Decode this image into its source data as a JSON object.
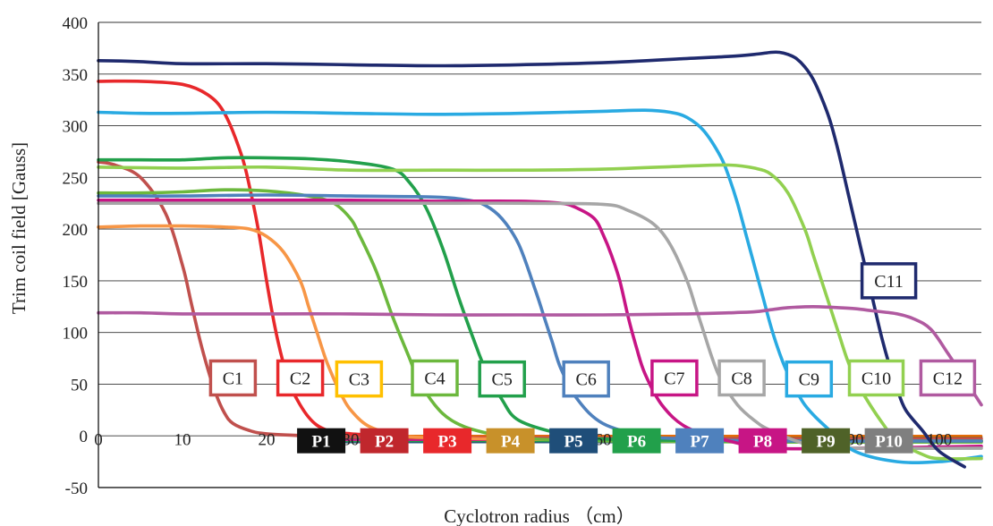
{
  "chart_data": {
    "type": "line",
    "xlabel": "Cyclotron radius （cm）",
    "ylabel": "Trim coil field  [Gauss]",
    "xlim": [
      0,
      105
    ],
    "ylim": [
      -50,
      400
    ],
    "x_ticks": [
      "0",
      "10",
      "20",
      "30",
      "40",
      "50",
      "60",
      "70",
      "80",
      "90",
      "100"
    ],
    "y_ticks": [
      "-50",
      "0",
      "50",
      "100",
      "150",
      "200",
      "250",
      "300",
      "350",
      "400"
    ],
    "grid": "horizontal",
    "series": [
      {
        "name": "C1",
        "color": "#c0504d",
        "x": [
          0,
          2,
          5,
          8,
          10,
          11,
          12,
          13,
          14,
          15,
          16,
          18,
          20,
          25,
          30,
          40,
          60,
          80,
          105
        ],
        "y": [
          265,
          262,
          250,
          215,
          165,
          130,
          95,
          65,
          40,
          22,
          12,
          5,
          2,
          0,
          -1,
          -2,
          -2,
          -3,
          -3
        ]
      },
      {
        "name": "C2",
        "color": "#e8282b",
        "x": [
          0,
          5,
          10,
          13,
          15,
          17,
          18,
          19,
          20,
          21,
          22,
          23,
          25,
          27,
          30,
          35,
          40,
          60,
          80,
          105
        ],
        "y": [
          343,
          343,
          340,
          330,
          312,
          272,
          240,
          200,
          150,
          105,
          70,
          45,
          18,
          6,
          2,
          0,
          -2,
          -4,
          -5,
          -5
        ]
      },
      {
        "name": "C3",
        "color": "#f79646",
        "x": [
          0,
          5,
          10,
          15,
          18,
          20,
          22,
          24,
          25,
          26,
          27,
          28,
          29,
          30,
          32,
          35,
          40,
          60,
          80,
          105
        ],
        "y": [
          202,
          203,
          203,
          202,
          200,
          193,
          178,
          150,
          125,
          100,
          75,
          55,
          38,
          25,
          10,
          2,
          -2,
          -4,
          -5,
          -5
        ]
      },
      {
        "name": "C4",
        "color": "#6cb83d",
        "x": [
          0,
          5,
          10,
          15,
          20,
          25,
          28,
          30,
          31,
          33,
          35,
          37,
          38,
          40,
          42,
          45,
          50,
          60,
          80,
          105
        ],
        "y": [
          235,
          235,
          236,
          238,
          237,
          232,
          225,
          210,
          195,
          160,
          115,
          75,
          55,
          30,
          15,
          5,
          -2,
          -5,
          -6,
          -6
        ]
      },
      {
        "name": "C5",
        "color": "#22a04b",
        "x": [
          0,
          5,
          10,
          15,
          20,
          25,
          30,
          35,
          37,
          39,
          41,
          43,
          45,
          46,
          48,
          50,
          55,
          60,
          80,
          105
        ],
        "y": [
          267,
          267,
          267,
          269,
          269,
          268,
          265,
          258,
          245,
          220,
          180,
          130,
          85,
          65,
          35,
          15,
          2,
          -3,
          -5,
          -5
        ]
      },
      {
        "name": "C6",
        "color": "#4f81bd",
        "x": [
          0,
          5,
          10,
          20,
          30,
          40,
          44,
          46,
          48,
          50,
          52,
          53,
          54,
          55,
          57,
          60,
          65,
          70,
          80,
          105
        ],
        "y": [
          232,
          232,
          232,
          233,
          232,
          231,
          228,
          223,
          210,
          185,
          140,
          115,
          90,
          65,
          35,
          12,
          0,
          -3,
          -5,
          -5
        ]
      },
      {
        "name": "C7",
        "color": "#c71585",
        "x": [
          0,
          10,
          20,
          30,
          40,
          50,
          55,
          57,
          59,
          60,
          61,
          62,
          63,
          64,
          65,
          67,
          70,
          75,
          80,
          90,
          105
        ],
        "y": [
          228,
          228,
          228,
          228,
          227,
          227,
          225,
          220,
          210,
          195,
          175,
          150,
          115,
          85,
          60,
          30,
          8,
          -5,
          -12,
          -12,
          -10
        ]
      },
      {
        "name": "C8",
        "color": "#a6a6a6",
        "x": [
          0,
          10,
          20,
          30,
          40,
          50,
          60,
          63,
          66,
          68,
          70,
          71,
          72,
          73,
          74,
          76,
          78,
          80,
          85,
          90,
          105
        ],
        "y": [
          225,
          225,
          225,
          225,
          225,
          225,
          224,
          218,
          205,
          185,
          150,
          125,
          100,
          75,
          55,
          30,
          15,
          5,
          -10,
          -12,
          -12
        ]
      },
      {
        "name": "C9",
        "color": "#29aae2",
        "x": [
          0,
          5,
          10,
          20,
          30,
          40,
          50,
          60,
          65,
          68,
          70,
          72,
          74,
          75,
          76,
          77,
          78,
          79,
          80,
          81,
          82,
          84,
          87,
          90,
          95,
          100,
          105
        ],
        "y": [
          313,
          312,
          312,
          313,
          312,
          311,
          312,
          314,
          315,
          313,
          308,
          295,
          270,
          250,
          225,
          195,
          165,
          135,
          105,
          80,
          60,
          30,
          5,
          -15,
          -25,
          -25,
          -20
        ]
      },
      {
        "name": "C10",
        "color": "#92d050",
        "x": [
          0,
          10,
          20,
          30,
          40,
          50,
          60,
          70,
          75,
          78,
          80,
          82,
          84,
          85,
          86,
          87,
          88,
          89,
          90,
          91,
          93,
          95,
          98,
          100,
          105
        ],
        "y": [
          260,
          259,
          260,
          257,
          257,
          257,
          258,
          261,
          262,
          259,
          253,
          235,
          200,
          175,
          150,
          125,
          100,
          75,
          55,
          40,
          15,
          -5,
          -18,
          -22,
          -22
        ]
      },
      {
        "name": "C11",
        "color": "#1f2a6e",
        "x": [
          0,
          5,
          10,
          20,
          30,
          40,
          50,
          60,
          70,
          75,
          78,
          80,
          81,
          82,
          83,
          84,
          85,
          86,
          87,
          88,
          89,
          90,
          91,
          92,
          93,
          94,
          95,
          96,
          98,
          100,
          103
        ],
        "y": [
          363,
          362,
          360,
          360,
          359,
          358,
          359,
          361,
          365,
          367,
          369,
          371,
          371,
          369,
          365,
          357,
          345,
          327,
          305,
          275,
          240,
          205,
          170,
          135,
          100,
          70,
          45,
          25,
          5,
          -15,
          -30
        ]
      },
      {
        "name": "C12",
        "color": "#b05aa0",
        "x": [
          0,
          5,
          10,
          20,
          30,
          40,
          50,
          60,
          70,
          75,
          78,
          80,
          82,
          85,
          88,
          90,
          92,
          95,
          97,
          99,
          101,
          103,
          105
        ],
        "y": [
          119,
          119,
          118,
          118,
          118,
          117,
          117,
          117,
          118,
          119,
          120,
          122,
          124,
          125,
          124,
          123,
          121,
          118,
          113,
          103,
          80,
          55,
          30
        ]
      },
      {
        "name": "P1",
        "color": "#111111",
        "x": [
          24,
          105
        ],
        "y": [
          -1,
          -1
        ]
      },
      {
        "name": "P2",
        "color": "#c0272d",
        "x": [
          26,
          105
        ],
        "y": [
          -3,
          -3
        ]
      },
      {
        "name": "P3",
        "color": "#e8282b",
        "x": [
          26,
          105
        ],
        "y": [
          -2,
          -2
        ]
      },
      {
        "name": "P4",
        "color": "#c8912a",
        "x": [
          26,
          105
        ],
        "y": [
          -4,
          -4
        ]
      },
      {
        "name": "P5",
        "color": "#1f4e79",
        "x": [
          26,
          105
        ],
        "y": [
          -6,
          -6
        ]
      },
      {
        "name": "P6",
        "color": "#22a04b",
        "x": [
          26,
          105
        ],
        "y": [
          -5,
          -5
        ]
      },
      {
        "name": "P7",
        "color": "#4f81bd",
        "x": [
          26,
          105
        ],
        "y": [
          -3,
          -3
        ]
      },
      {
        "name": "P8",
        "color": "#c71585",
        "x": [
          26,
          105
        ],
        "y": [
          -4,
          -4
        ]
      },
      {
        "name": "P9",
        "color": "#4f6228",
        "x": [
          26,
          105
        ],
        "y": [
          -2,
          -2
        ]
      },
      {
        "name": "P10",
        "color": "#e46c0a",
        "x": [
          26,
          105
        ],
        "y": [
          0,
          0
        ]
      }
    ],
    "curve_labels": [
      {
        "text": "C1",
        "color": "#c0504d",
        "x": 16,
        "y": 56
      },
      {
        "text": "C2",
        "color": "#e8282b",
        "x": 24,
        "y": 56
      },
      {
        "text": "C3",
        "color": "#ffc000",
        "x": 31,
        "y": 55
      },
      {
        "text": "C4",
        "color": "#6cb83d",
        "x": 40,
        "y": 56
      },
      {
        "text": "C5",
        "color": "#22a04b",
        "x": 48,
        "y": 55
      },
      {
        "text": "C6",
        "color": "#4f81bd",
        "x": 58,
        "y": 55
      },
      {
        "text": "C7",
        "color": "#c71585",
        "x": 68.5,
        "y": 56
      },
      {
        "text": "C8",
        "color": "#a6a6a6",
        "x": 76.5,
        "y": 56
      },
      {
        "text": "C9",
        "color": "#29aae2",
        "x": 84.5,
        "y": 55
      },
      {
        "text": "C10",
        "color": "#92d050",
        "x": 92.5,
        "y": 56
      },
      {
        "text": "C11",
        "color": "#1f2a6e",
        "x": 94,
        "y": 150
      },
      {
        "text": "C12",
        "color": "#b05aa0",
        "x": 101,
        "y": 56
      }
    ],
    "band_labels": [
      {
        "text": "P1",
        "color": "#111111",
        "x": 26.5
      },
      {
        "text": "P2",
        "color": "#c0272d",
        "x": 34
      },
      {
        "text": "P3",
        "color": "#e8282b",
        "x": 41.5
      },
      {
        "text": "P4",
        "color": "#c8912a",
        "x": 49
      },
      {
        "text": "P5",
        "color": "#1f4e79",
        "x": 56.5
      },
      {
        "text": "P6",
        "color": "#22a04b",
        "x": 64
      },
      {
        "text": "P7",
        "color": "#4f81bd",
        "x": 71.5
      },
      {
        "text": "P8",
        "color": "#c71585",
        "x": 79
      },
      {
        "text": "P9",
        "color": "#4f6228",
        "x": 86.5
      },
      {
        "text": "P10",
        "color": "#7f7f7f",
        "x": 94
      }
    ]
  }
}
